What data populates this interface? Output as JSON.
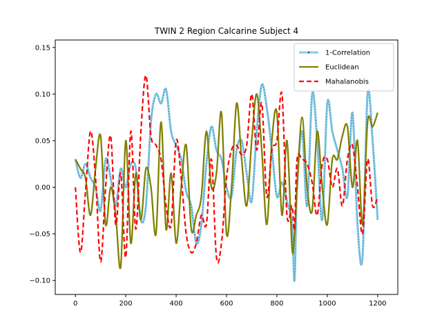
{
  "chart_data": {
    "type": "line",
    "title": "TWIN 2  Region Calcarine Subject 4",
    "xlabel": "",
    "ylabel": "",
    "xlim": [
      -80,
      1280
    ],
    "ylim": [
      -0.115,
      0.158
    ],
    "xticks": [
      0,
      200,
      400,
      600,
      800,
      1000,
      1200
    ],
    "xtick_labels": [
      "0",
      "200",
      "400",
      "600",
      "800",
      "1000",
      "1200"
    ],
    "yticks": [
      -0.1,
      -0.05,
      0.0,
      0.05,
      0.1,
      0.15
    ],
    "ytick_labels": [
      "−0.10",
      "−0.05",
      "0.00",
      "0.05",
      "0.10",
      "0.15"
    ],
    "grid": false,
    "legend_position": "top-right",
    "series": [
      {
        "name": "1-Correlation",
        "color": "#87ceeb",
        "style": "solid-thick-with-dark-markers",
        "x": [
          0,
          20,
          40,
          60,
          80,
          100,
          120,
          140,
          160,
          180,
          200,
          220,
          240,
          260,
          280,
          300,
          320,
          340,
          360,
          380,
          400,
          420,
          440,
          460,
          480,
          500,
          520,
          540,
          560,
          580,
          600,
          620,
          640,
          660,
          680,
          700,
          720,
          740,
          760,
          780,
          800,
          820,
          840,
          860,
          870,
          880,
          900,
          920,
          940,
          960,
          980,
          1000,
          1020,
          1040,
          1060,
          1080,
          1100,
          1120,
          1140,
          1160,
          1180,
          1200
        ],
        "y": [
          0.03,
          0.01,
          0.025,
          0.01,
          0.0,
          -0.025,
          0.03,
          0.01,
          -0.02,
          0.02,
          0.0,
          0.025,
          0.02,
          -0.035,
          -0.02,
          0.07,
          0.1,
          0.09,
          0.105,
          0.06,
          0.045,
          0.03,
          -0.005,
          -0.02,
          -0.06,
          -0.04,
          0.025,
          0.065,
          0.04,
          0.03,
          0.0,
          -0.01,
          0.04,
          0.05,
          0.015,
          -0.015,
          0.06,
          0.11,
          0.085,
          0.04,
          -0.01,
          0.005,
          -0.015,
          -0.04,
          -0.1,
          0.0,
          0.06,
          -0.02,
          0.1,
          0.05,
          -0.035,
          0.09,
          0.06,
          0.04,
          0.02,
          -0.01,
          0.08,
          -0.04,
          -0.075,
          0.1,
          0.05,
          -0.035
        ]
      },
      {
        "name": "Euclidean",
        "color": "#808000",
        "style": "solid",
        "x": [
          0,
          20,
          40,
          60,
          80,
          100,
          120,
          140,
          160,
          180,
          200,
          220,
          240,
          260,
          280,
          300,
          320,
          340,
          360,
          380,
          400,
          420,
          440,
          460,
          480,
          500,
          520,
          540,
          560,
          580,
          600,
          620,
          640,
          660,
          680,
          700,
          720,
          740,
          760,
          780,
          800,
          820,
          840,
          860,
          870,
          880,
          900,
          920,
          940,
          960,
          980,
          1000,
          1020,
          1040,
          1060,
          1080,
          1100,
          1120,
          1140,
          1160,
          1180,
          1200
        ],
        "y": [
          0.03,
          0.02,
          0.01,
          -0.03,
          0.02,
          0.055,
          -0.04,
          0.0,
          -0.03,
          -0.085,
          0.05,
          -0.06,
          0.015,
          -0.035,
          0.02,
          0.0,
          -0.05,
          0.07,
          -0.045,
          0.015,
          -0.06,
          0.0,
          0.045,
          -0.045,
          -0.03,
          -0.01,
          0.06,
          0.0,
          0.015,
          0.08,
          -0.05,
          0.0,
          0.09,
          0.03,
          -0.02,
          0.05,
          0.1,
          0.04,
          -0.04,
          0.05,
          0.08,
          -0.03,
          0.05,
          -0.065,
          -0.05,
          0.0,
          0.075,
          0.0,
          -0.025,
          0.06,
          0.0,
          -0.04,
          0.03,
          0.03,
          0.055,
          0.065,
          0.0,
          0.05,
          -0.04,
          0.07,
          0.065,
          0.08
        ]
      },
      {
        "name": "Mahalanobis",
        "color": "#ff0000",
        "style": "dashed",
        "x": [
          0,
          20,
          40,
          60,
          80,
          100,
          120,
          140,
          160,
          180,
          200,
          220,
          240,
          260,
          280,
          300,
          320,
          340,
          360,
          380,
          400,
          420,
          440,
          460,
          480,
          500,
          520,
          540,
          560,
          580,
          600,
          620,
          640,
          660,
          680,
          700,
          720,
          740,
          760,
          780,
          800,
          820,
          840,
          860,
          870,
          880,
          900,
          920,
          940,
          960,
          980,
          1000,
          1020,
          1040,
          1060,
          1080,
          1100,
          1120,
          1140,
          1160,
          1180,
          1200
        ],
        "y": [
          0.0,
          -0.07,
          -0.005,
          0.06,
          0.01,
          -0.08,
          0.0,
          0.055,
          -0.04,
          0.015,
          -0.075,
          0.06,
          -0.045,
          0.06,
          0.12,
          0.055,
          0.045,
          0.03,
          -0.02,
          -0.04,
          0.05,
          0.01,
          -0.05,
          -0.07,
          -0.06,
          -0.03,
          -0.04,
          0.03,
          -0.075,
          -0.06,
          0.01,
          0.04,
          0.045,
          0.035,
          0.045,
          0.1,
          0.04,
          0.09,
          -0.01,
          0.04,
          0.05,
          0.1,
          -0.03,
          -0.02,
          -0.045,
          0.03,
          0.03,
          0.025,
          0.005,
          -0.03,
          0.025,
          0.03,
          0.0,
          0.02,
          -0.02,
          0.03,
          0.045,
          0.0,
          -0.05,
          0.03,
          -0.02,
          -0.01
        ]
      }
    ]
  }
}
